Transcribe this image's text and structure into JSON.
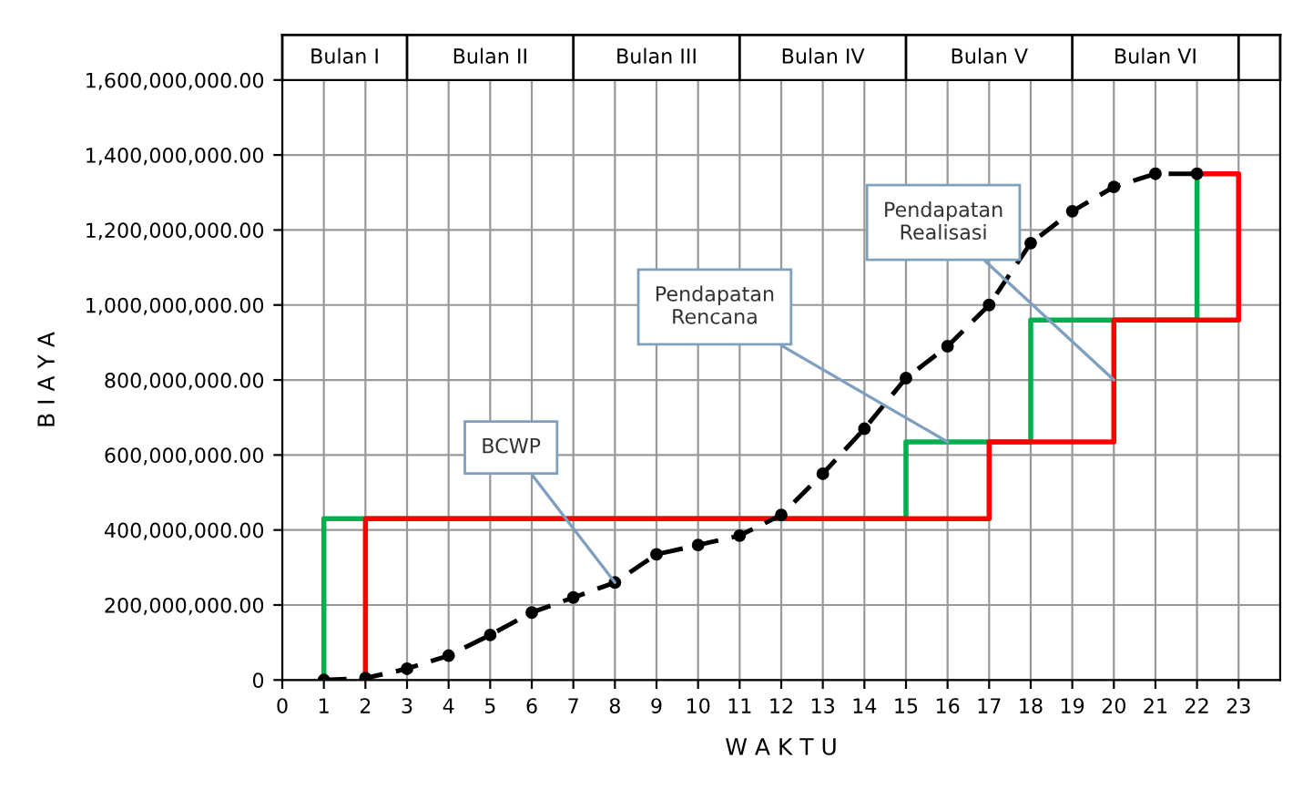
{
  "chart_data": {
    "type": "line",
    "xlabel": "W A K T U",
    "ylabel": "B I A Y A",
    "xlim": [
      0,
      24
    ],
    "xticks": [
      0,
      1,
      2,
      3,
      4,
      5,
      6,
      7,
      8,
      9,
      10,
      11,
      12,
      13,
      14,
      15,
      16,
      17,
      18,
      19,
      20,
      21,
      22,
      23
    ],
    "ylim": [
      0,
      1600000000
    ],
    "yticks": [
      {
        "value": 0,
        "label": "0"
      },
      {
        "value": 200000000,
        "label": "200,000,000.00"
      },
      {
        "value": 400000000,
        "label": "400,000,000.00"
      },
      {
        "value": 600000000,
        "label": "600,000,000.00"
      },
      {
        "value": 800000000,
        "label": "800,000,000.00"
      },
      {
        "value": 1000000000,
        "label": "1,000,000,000.00"
      },
      {
        "value": 1200000000,
        "label": "1,200,000,000.00"
      },
      {
        "value": 1400000000,
        "label": "1,400,000,000.00"
      },
      {
        "value": 1600000000,
        "label": "1,600,000,000.00"
      }
    ],
    "grid": true,
    "series": [
      {
        "color": "#00b050",
        "line_style": "solid",
        "marker": "none",
        "x": [
          1,
          1,
          15,
          15,
          18,
          18,
          22,
          22
        ],
        "values": [
          0,
          430000000,
          430000000,
          635000000,
          635000000,
          960000000,
          960000000,
          1350000000
        ]
      },
      {
        "color": "#ff0000",
        "line_style": "solid",
        "marker": "none",
        "x": [
          2,
          2,
          17,
          17,
          20,
          20,
          23,
          23,
          22
        ],
        "values": [
          0,
          430000000,
          430000000,
          635000000,
          635000000,
          960000000,
          960000000,
          1350000000,
          1350000000
        ]
      },
      {
        "color": "#000000",
        "line_style": "dashed",
        "marker": "circle",
        "x": [
          1,
          2,
          3,
          4,
          5,
          6,
          7,
          8,
          9,
          10,
          11,
          12,
          13,
          14,
          15,
          16,
          17,
          18,
          19,
          20,
          21,
          22
        ],
        "values": [
          0,
          5000000,
          30000000,
          65000000,
          120000000,
          180000000,
          220000000,
          260000000,
          335000000,
          360000000,
          385000000,
          440000000,
          550000000,
          670000000,
          805000000,
          890000000,
          1000000000,
          1165000000,
          1250000000,
          1315000000,
          1350000000,
          1350000000
        ]
      }
    ],
    "annotations": [
      "Bulan I",
      "Bulan II",
      "Bulan III",
      "Bulan IV",
      "Bulan V",
      "Bulan VI",
      {
        "text": "BCWP",
        "x": 8,
        "y": 260000000
      },
      {
        "text": "Pendapatan\nRencana",
        "x": 16,
        "y": 635000000
      },
      {
        "text": "Pendapatan\nRealisasi",
        "x": 20,
        "y": 800000000
      }
    ]
  }
}
